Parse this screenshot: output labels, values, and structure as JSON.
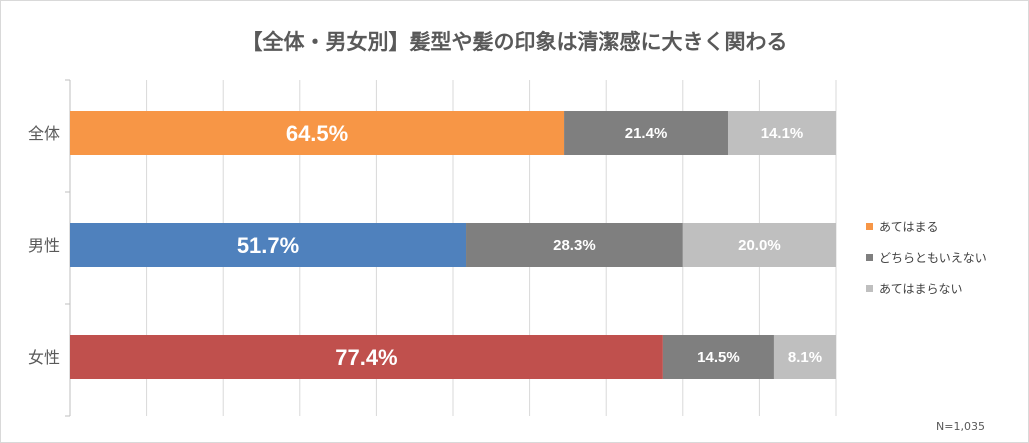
{
  "chart_data": {
    "type": "bar",
    "orientation": "horizontal",
    "stacked": true,
    "title": "【全体・男女別】髪型や髪の印象は清潔感に大きく関わる",
    "categories": [
      "全体",
      "男性",
      "女性"
    ],
    "series": [
      {
        "name": "あてはまる",
        "values": [
          64.5,
          51.7,
          77.4
        ],
        "labels": [
          "64.5%",
          "51.7%",
          "77.4%"
        ],
        "color": "#f79646"
      },
      {
        "name": "どちらともいえない",
        "values": [
          21.4,
          28.3,
          14.5
        ],
        "labels": [
          "21.4%",
          "28.3%",
          "14.5%"
        ],
        "color": "#7f7f7f"
      },
      {
        "name": "あてはまらない",
        "values": [
          14.1,
          20.0,
          8.1
        ],
        "labels": [
          "14.1%",
          "20.0%",
          "8.1%"
        ],
        "color": "#bfbfbf"
      }
    ],
    "first_series_bar_colors": [
      "#f79646",
      "#4f81bd",
      "#c0504d"
    ],
    "xlim": [
      0,
      100
    ],
    "grid": true,
    "legend_position": "right"
  },
  "note": "N=1,035"
}
